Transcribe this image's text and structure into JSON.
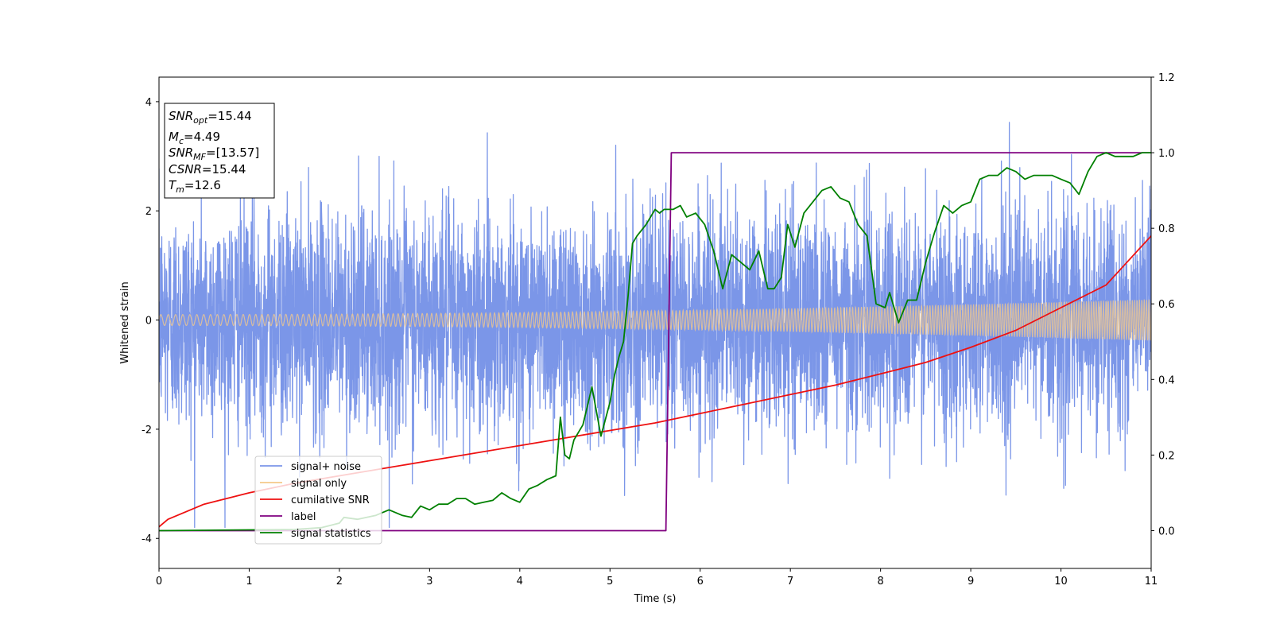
{
  "chart_data": {
    "type": "line",
    "xlabel": "Time (s)",
    "ylabel": "Whitened strain",
    "ylabel_right": "",
    "xlim": [
      0,
      11
    ],
    "ylim_left": [
      -4.55,
      4.45
    ],
    "ylim_right": [
      -0.1,
      1.2
    ],
    "xticks": [
      0,
      1,
      2,
      3,
      4,
      5,
      6,
      7,
      8,
      9,
      10,
      11
    ],
    "yticks_left": [
      -4,
      -2,
      0,
      2,
      4
    ],
    "yticks_right": [
      0.0,
      0.2,
      0.4,
      0.6,
      0.8,
      1.0,
      1.2
    ],
    "grid": false,
    "legend_position": "lower-left",
    "annotation": [
      {
        "name": "SNR",
        "sub": "opt",
        "value": "=15.44"
      },
      {
        "name": "M",
        "sub": "c",
        "value": "=4.49"
      },
      {
        "name": "SNR",
        "sub": "MF",
        "value": "=[13.57]"
      },
      {
        "name": "CSNR",
        "sub": "",
        "value": "=15.44"
      },
      {
        "name": "T",
        "sub": "m",
        "value": "=12.6"
      }
    ],
    "series": [
      {
        "name": "signal+ noise",
        "axis": "left",
        "color": "#7b96e8",
        "kind": "noise",
        "sigma": 1.0,
        "max_abs": 3.8
      },
      {
        "name": "signal only",
        "axis": "left",
        "color": "#f5c98a",
        "kind": "chirp",
        "amplitude_start": 0.1,
        "amplitude_end": 0.38
      },
      {
        "name": "cumilative SNR",
        "axis": "right",
        "color": "#ee1111",
        "x": [
          0,
          0.1,
          0.5,
          1,
          1.5,
          2,
          2.5,
          3,
          3.5,
          4,
          4.5,
          5,
          5.5,
          6,
          6.5,
          7,
          7.5,
          8,
          8.5,
          9,
          9.5,
          10,
          10.5,
          11
        ],
        "y": [
          0.01,
          0.03,
          0.07,
          0.1,
          0.125,
          0.145,
          0.165,
          0.185,
          0.205,
          0.225,
          0.245,
          0.265,
          0.285,
          0.31,
          0.335,
          0.36,
          0.385,
          0.415,
          0.445,
          0.485,
          0.53,
          0.59,
          0.65,
          0.78
        ]
      },
      {
        "name": "label",
        "axis": "right",
        "color": "#800080",
        "x": [
          0,
          5.62,
          5.68,
          11
        ],
        "y": [
          0.0,
          0.0,
          1.0,
          1.0
        ]
      },
      {
        "name": "signal statistics",
        "axis": "right",
        "color": "#008000",
        "x": [
          0,
          0.5,
          1,
          1.5,
          1.8,
          2.0,
          2.05,
          2.2,
          2.4,
          2.55,
          2.7,
          2.8,
          2.9,
          3.0,
          3.1,
          3.2,
          3.3,
          3.4,
          3.5,
          3.6,
          3.7,
          3.8,
          3.9,
          4.0,
          4.1,
          4.2,
          4.3,
          4.4,
          4.45,
          4.5,
          4.55,
          4.6,
          4.7,
          4.8,
          4.9,
          5.0,
          5.05,
          5.1,
          5.15,
          5.2,
          5.25,
          5.3,
          5.4,
          5.5,
          5.55,
          5.6,
          5.7,
          5.78,
          5.85,
          5.95,
          6.05,
          6.15,
          6.25,
          6.35,
          6.45,
          6.55,
          6.65,
          6.75,
          6.82,
          6.9,
          6.97,
          7.05,
          7.15,
          7.25,
          7.35,
          7.45,
          7.55,
          7.65,
          7.75,
          7.85,
          7.95,
          8.05,
          8.1,
          8.2,
          8.3,
          8.4,
          8.5,
          8.6,
          8.7,
          8.8,
          8.9,
          9.0,
          9.1,
          9.2,
          9.3,
          9.4,
          9.5,
          9.6,
          9.7,
          9.8,
          9.9,
          10.0,
          10.1,
          10.2,
          10.3,
          10.4,
          10.5,
          10.6,
          10.7,
          10.8,
          10.9,
          11.0
        ],
        "y": [
          0.0,
          0.001,
          0.002,
          0.003,
          0.008,
          0.02,
          0.035,
          0.03,
          0.04,
          0.055,
          0.04,
          0.035,
          0.065,
          0.055,
          0.07,
          0.07,
          0.085,
          0.085,
          0.07,
          0.075,
          0.08,
          0.1,
          0.085,
          0.075,
          0.11,
          0.12,
          0.135,
          0.145,
          0.3,
          0.2,
          0.19,
          0.24,
          0.28,
          0.38,
          0.25,
          0.34,
          0.41,
          0.46,
          0.5,
          0.62,
          0.76,
          0.78,
          0.81,
          0.85,
          0.84,
          0.85,
          0.85,
          0.86,
          0.83,
          0.84,
          0.81,
          0.74,
          0.64,
          0.73,
          0.71,
          0.69,
          0.74,
          0.64,
          0.64,
          0.67,
          0.81,
          0.75,
          0.84,
          0.87,
          0.9,
          0.91,
          0.88,
          0.87,
          0.81,
          0.78,
          0.6,
          0.59,
          0.63,
          0.55,
          0.61,
          0.61,
          0.71,
          0.79,
          0.86,
          0.84,
          0.86,
          0.87,
          0.93,
          0.94,
          0.94,
          0.96,
          0.95,
          0.93,
          0.94,
          0.94,
          0.94,
          0.93,
          0.92,
          0.89,
          0.95,
          0.99,
          1.0,
          0.99,
          0.99,
          0.99,
          1.0,
          1.0
        ]
      }
    ]
  }
}
